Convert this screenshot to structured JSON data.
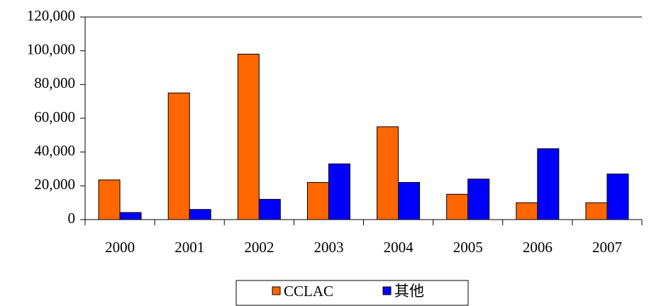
{
  "chart_data": {
    "type": "bar",
    "categories": [
      "2000",
      "2001",
      "2002",
      "2003",
      "2004",
      "2005",
      "2006",
      "2007"
    ],
    "series": [
      {
        "name": "CCLAC",
        "color": "#ff6600",
        "values": [
          23500,
          75000,
          98000,
          22000,
          55000,
          15000,
          10000,
          10000
        ]
      },
      {
        "name": "其他",
        "color": "#0000ff",
        "values": [
          4200,
          6000,
          12000,
          33000,
          22000,
          24000,
          42000,
          27000
        ]
      }
    ],
    "ylim": [
      0,
      120000
    ],
    "yticks": [
      0,
      {
        "value": 20000,
        "label": "20,000"
      },
      {
        "value": 40000,
        "label": "40,000"
      },
      {
        "value": 60000,
        "label": "60,000"
      },
      {
        "value": 80000,
        "label": "80,000"
      },
      {
        "value": 100000,
        "label": "100,000"
      },
      {
        "value": 120000,
        "label": "120,000"
      }
    ],
    "grid": false,
    "legend": "bottom"
  }
}
